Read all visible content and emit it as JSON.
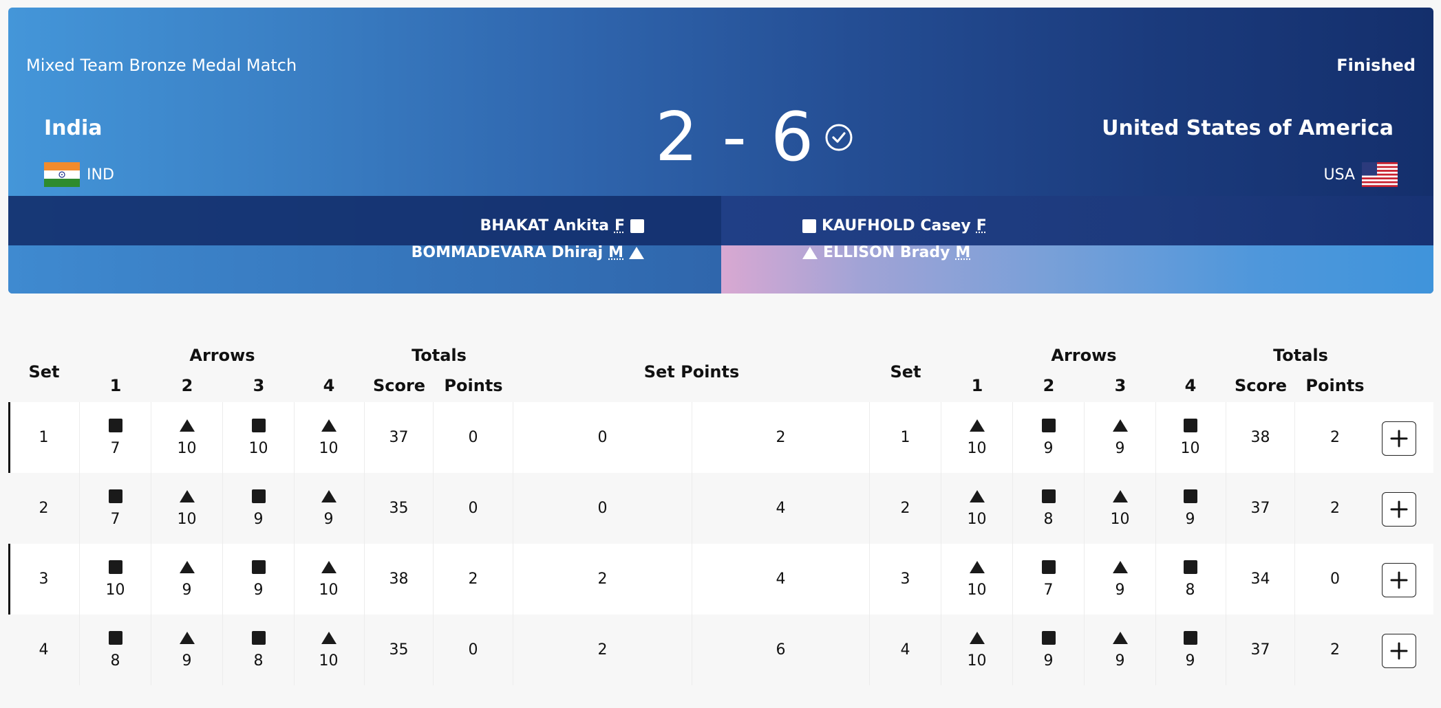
{
  "match": {
    "event": "Mixed Team Bronze Medal Match",
    "status": "Finished",
    "score": "2 - 6"
  },
  "teams": {
    "left": {
      "name": "India",
      "code": "IND",
      "athletes": [
        {
          "name": "BHAKAT Ankita",
          "gender": "F",
          "shape": "square"
        },
        {
          "name": "BOMMADEVARA Dhiraj",
          "gender": "M",
          "shape": "triangle"
        }
      ]
    },
    "right": {
      "name": "United States of America",
      "code": "USA",
      "athletes": [
        {
          "name": "KAUFHOLD Casey",
          "gender": "F",
          "shape": "square"
        },
        {
          "name": "ELLISON Brady",
          "gender": "M",
          "shape": "triangle"
        }
      ]
    }
  },
  "table": {
    "headers": {
      "set": "Set",
      "arrows": "Arrows",
      "totals": "Totals",
      "a1": "1",
      "a2": "2",
      "a3": "3",
      "a4": "4",
      "score": "Score",
      "points": "Points",
      "set_points": "Set Points"
    },
    "rows": [
      {
        "set": "1",
        "left_arrows": [
          "7",
          "10",
          "10",
          "10"
        ],
        "left_score": "37",
        "left_points": "0",
        "left_set_points": "0",
        "right_set_points": "2",
        "right_arrows": [
          "10",
          "9",
          "9",
          "10"
        ],
        "right_score": "38",
        "right_points": "2"
      },
      {
        "set": "2",
        "left_arrows": [
          "7",
          "10",
          "9",
          "9"
        ],
        "left_score": "35",
        "left_points": "0",
        "left_set_points": "0",
        "right_set_points": "4",
        "right_arrows": [
          "10",
          "8",
          "10",
          "9"
        ],
        "right_score": "37",
        "right_points": "2"
      },
      {
        "set": "3",
        "left_arrows": [
          "10",
          "9",
          "9",
          "10"
        ],
        "left_score": "38",
        "left_points": "2",
        "left_set_points": "2",
        "right_set_points": "4",
        "right_arrows": [
          "10",
          "7",
          "9",
          "8"
        ],
        "right_score": "34",
        "right_points": "0"
      },
      {
        "set": "4",
        "left_arrows": [
          "8",
          "9",
          "8",
          "10"
        ],
        "left_score": "35",
        "left_points": "0",
        "left_set_points": "2",
        "right_set_points": "6",
        "right_arrows": [
          "10",
          "9",
          "9",
          "9"
        ],
        "right_score": "37",
        "right_points": "2"
      }
    ]
  },
  "icons": {
    "winner": "check-circle-icon",
    "expand": "plus-icon",
    "square_marker": "square-icon",
    "triangle_marker": "triangle-icon"
  },
  "colors": {
    "banner_start": "#4496d9",
    "banner_end": "#142f6c",
    "text_on_banner": "#ffffff"
  }
}
